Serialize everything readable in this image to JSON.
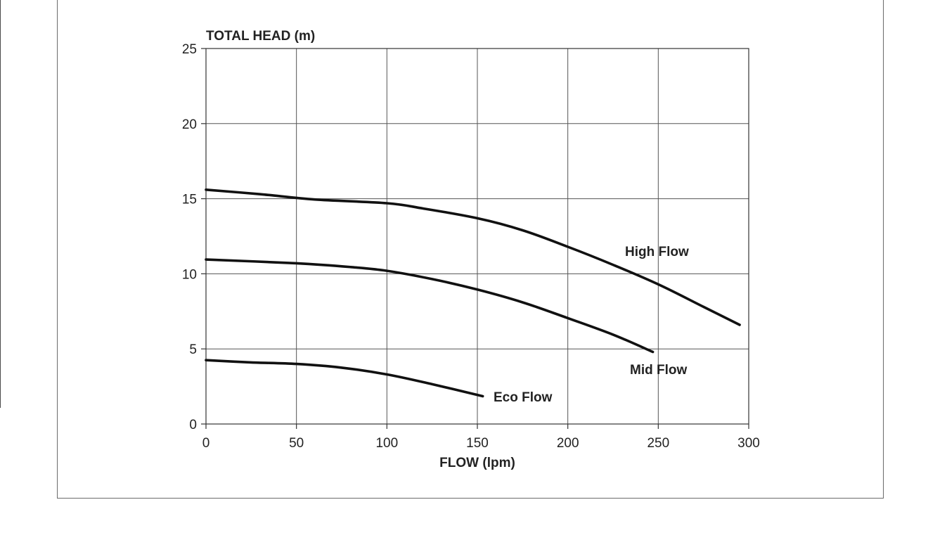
{
  "chart_data": {
    "type": "line",
    "ylabel": "TOTAL HEAD (m)",
    "xlabel": "FLOW (lpm)",
    "xlim": [
      0,
      300
    ],
    "ylim": [
      0,
      25
    ],
    "xticks": [
      0,
      50,
      100,
      150,
      200,
      250,
      300
    ],
    "yticks": [
      0,
      5,
      10,
      15,
      20,
      25
    ],
    "grid": true,
    "series": [
      {
        "name": "High Flow",
        "points": [
          [
            0,
            15.6
          ],
          [
            30,
            15.3
          ],
          [
            60,
            14.95
          ],
          [
            100,
            14.7
          ],
          [
            120,
            14.35
          ],
          [
            150,
            13.7
          ],
          [
            175,
            12.9
          ],
          [
            200,
            11.8
          ],
          [
            225,
            10.6
          ],
          [
            250,
            9.3
          ],
          [
            275,
            7.8
          ],
          [
            295,
            6.6
          ]
        ]
      },
      {
        "name": "Mid Flow",
        "points": [
          [
            0,
            10.95
          ],
          [
            50,
            10.7
          ],
          [
            80,
            10.45
          ],
          [
            100,
            10.2
          ],
          [
            125,
            9.65
          ],
          [
            150,
            8.95
          ],
          [
            175,
            8.1
          ],
          [
            200,
            7.05
          ],
          [
            225,
            5.95
          ],
          [
            247,
            4.8
          ]
        ]
      },
      {
        "name": "Eco Flow",
        "points": [
          [
            0,
            4.25
          ],
          [
            25,
            4.1
          ],
          [
            50,
            4.0
          ],
          [
            75,
            3.75
          ],
          [
            100,
            3.3
          ],
          [
            125,
            2.65
          ],
          [
            153,
            1.85
          ]
        ]
      }
    ]
  },
  "labels": {
    "high": "High Flow",
    "mid": "Mid Flow",
    "eco": "Eco Flow"
  }
}
